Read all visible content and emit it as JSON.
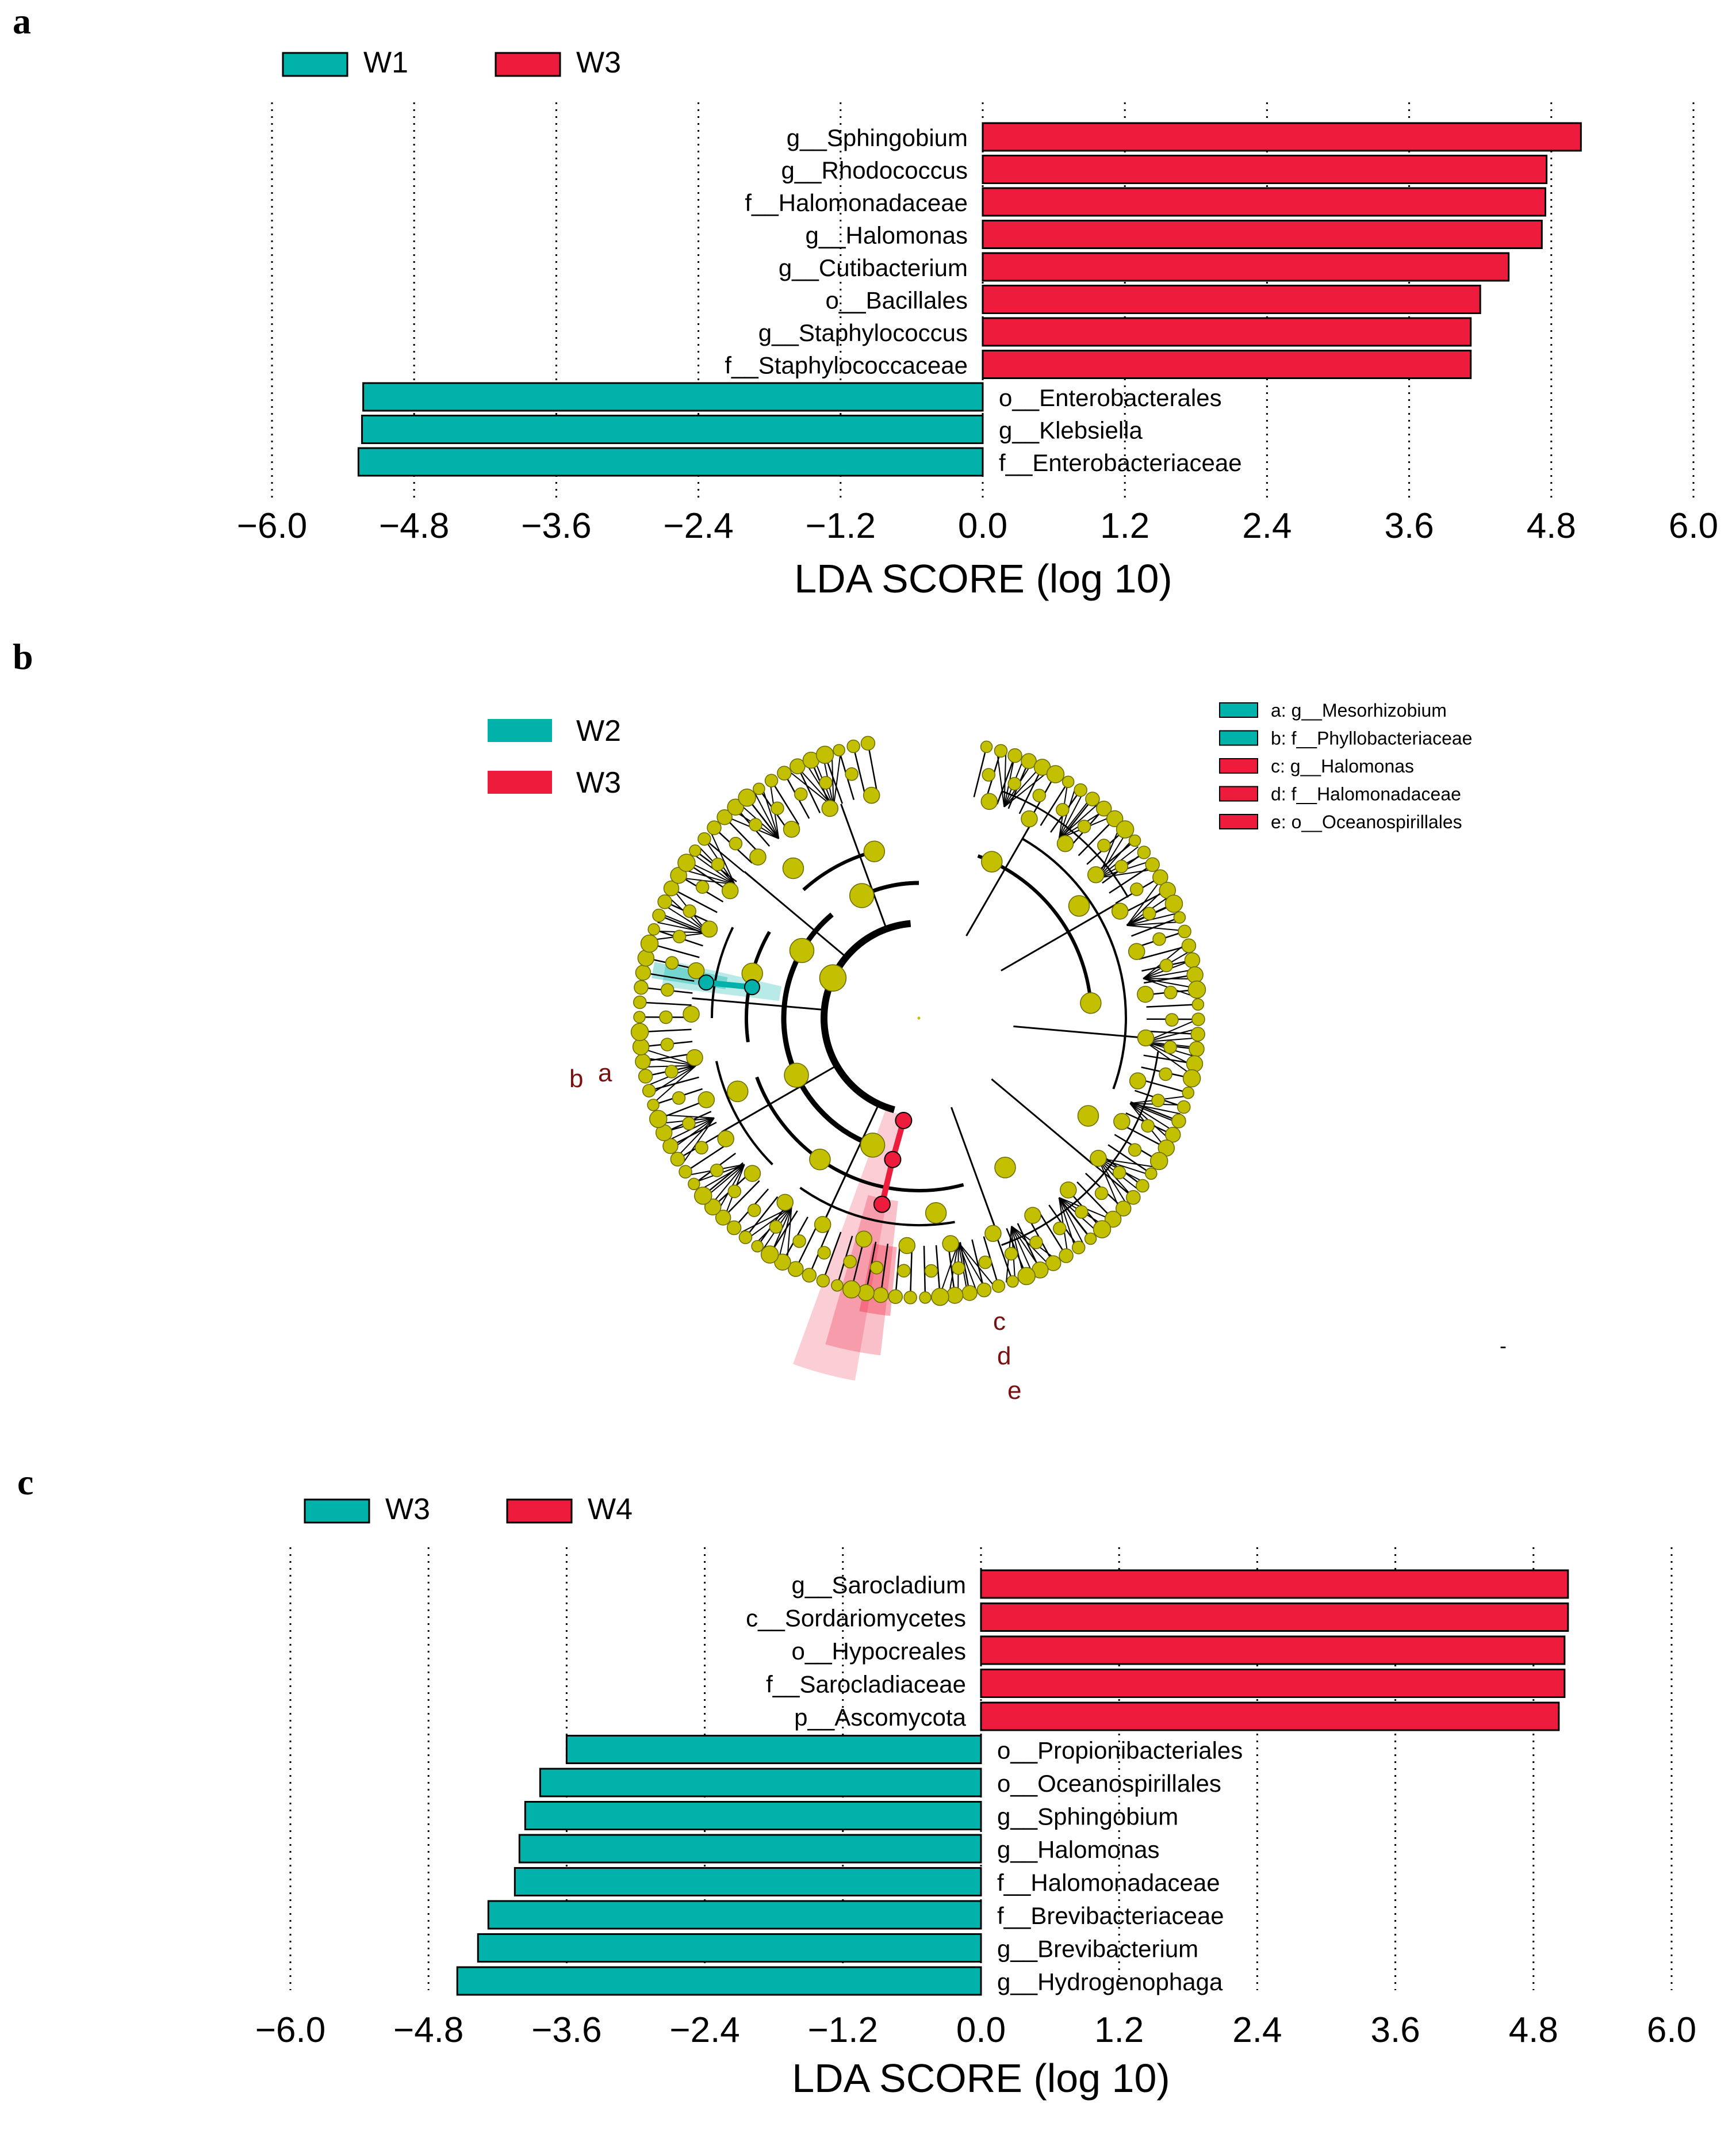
{
  "panels": {
    "a": {
      "letter": "a"
    },
    "b": {
      "letter": "b"
    },
    "c": {
      "letter": "c"
    }
  },
  "colors": {
    "teal": "#00b2a9",
    "red": "#ed1c3c",
    "node": "#c2c000",
    "text": "#000000"
  },
  "chart_data": [
    {
      "id": "a",
      "type": "bar",
      "orientation": "horizontal",
      "legend": [
        {
          "name": "W1",
          "color": "#00b2a9"
        },
        {
          "name": "W3",
          "color": "#ed1c3c"
        }
      ],
      "xlabel": "LDA SCORE (log 10)",
      "xlim": [
        -6.0,
        6.0
      ],
      "xticks": [
        -6.0,
        -4.8,
        -3.6,
        -2.4,
        -1.2,
        0.0,
        1.2,
        2.4,
        3.6,
        4.8,
        6.0
      ],
      "tick_labels": [
        "−6.0",
        "−4.8",
        "−3.6",
        "−2.4",
        "−1.2",
        "0.0",
        "1.2",
        "2.4",
        "3.6",
        "4.8",
        "6.0"
      ],
      "grid": "vertical dotted",
      "categories": [
        "g__Sphingobium",
        "g__Rhodococcus",
        "f__Halomonadaceae",
        "g__Halomonas",
        "g__Cutibacterium",
        "o__Bacillales",
        "g__Staphylococcus",
        "f__Staphylococcaceae",
        "o__Enterobacterales",
        "g__Klebsiella",
        "f__Enterobacteriaceae"
      ],
      "values": [
        5.05,
        4.76,
        4.75,
        4.72,
        4.44,
        4.2,
        4.12,
        4.12,
        -5.23,
        -5.24,
        -5.27
      ]
    },
    {
      "id": "b",
      "type": "cladogram",
      "legend": [
        {
          "name": "W2",
          "color": "#00b2a9"
        },
        {
          "name": "W3",
          "color": "#ed1c3c"
        }
      ],
      "taxa_legend": [
        {
          "label": "a: g__Mesorhizobium",
          "color": "#00b2a9"
        },
        {
          "label": "b: f__Phyllobacteriaceae",
          "color": "#00b2a9"
        },
        {
          "label": "c: g__Halomonas",
          "color": "#ed1c3c"
        },
        {
          "label": "d: f__Halomonadaceae",
          "color": "#ed1c3c"
        },
        {
          "label": "e: o__Oceanospirillales",
          "color": "#ed1c3c"
        }
      ],
      "sector_labels": [
        "a",
        "b",
        "c",
        "d",
        "e"
      ],
      "mark": "-"
    },
    {
      "id": "c",
      "type": "bar",
      "orientation": "horizontal",
      "legend": [
        {
          "name": "W3",
          "color": "#00b2a9"
        },
        {
          "name": "W4",
          "color": "#ed1c3c"
        }
      ],
      "xlabel": "LDA SCORE (log 10)",
      "xlim": [
        -6.0,
        6.0
      ],
      "xticks": [
        -6.0,
        -4.8,
        -3.6,
        -2.4,
        -1.2,
        0.0,
        1.2,
        2.4,
        3.6,
        4.8,
        6.0
      ],
      "tick_labels": [
        "−6.0",
        "−4.8",
        "−3.6",
        "−2.4",
        "−1.2",
        "0.0",
        "1.2",
        "2.4",
        "3.6",
        "4.8",
        "6.0"
      ],
      "grid": "vertical dotted",
      "categories": [
        "g__Sarocladium",
        "c__Sordariomycetes",
        "o__Hypocreales",
        "f__Sarocladiaceae",
        "p__Ascomycota",
        "o__Propionibacteriales",
        "o__Oceanospirillales",
        "g__Sphingobium",
        "g__Halomonas",
        "f__Halomonadaceae",
        "f__Brevibacteriaceae",
        "g__Brevibacterium",
        "g__Hydrogenophaga"
      ],
      "values": [
        5.1,
        5.1,
        5.07,
        5.07,
        5.02,
        -3.6,
        -3.83,
        -3.96,
        -4.01,
        -4.05,
        -4.28,
        -4.37,
        -4.55
      ]
    }
  ]
}
